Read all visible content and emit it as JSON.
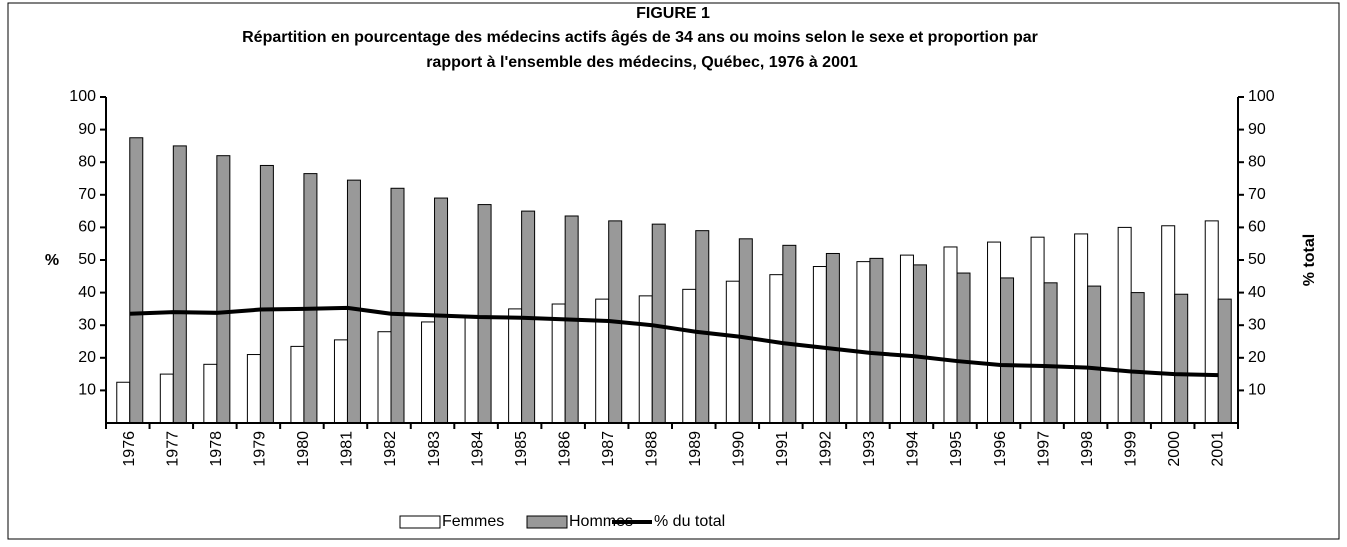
{
  "chart_data": {
    "type": "bar_line",
    "title": "FIGURE 1",
    "subtitle": [
      "Répartition en pourcentage des médecins actifs âgés de 34 ans ou moins selon le sexe et  proportion par",
      "rapport à l'ensemble des médecins, Québec, 1976 à 2001"
    ],
    "ylabel": "%",
    "y2label": "% total",
    "categories": [
      "1976",
      "1977",
      "1978",
      "1979",
      "1980",
      "1981",
      "1982",
      "1983",
      "1984",
      "1985",
      "1986",
      "1987",
      "1988",
      "1989",
      "1990",
      "1991",
      "1992",
      "1993",
      "1994",
      "1995",
      "1996",
      "1997",
      "1998",
      "1999",
      "2000",
      "2001"
    ],
    "series": [
      {
        "name": "Femmes",
        "kind": "bar",
        "color": "#ffffff",
        "values": [
          12.5,
          15,
          18,
          21,
          23.5,
          25.5,
          28,
          31,
          33,
          35,
          36.5,
          38,
          39,
          41,
          43.5,
          45.5,
          48,
          49.5,
          51.5,
          54,
          55.5,
          57,
          58,
          60,
          60.5,
          62
        ]
      },
      {
        "name": "Hommes",
        "kind": "bar",
        "color": "#999999",
        "values": [
          87.5,
          85,
          82,
          79,
          76.5,
          74.5,
          72,
          69,
          67,
          65,
          63.5,
          62,
          61,
          59,
          56.5,
          54.5,
          52,
          50.5,
          48.5,
          46,
          44.5,
          43,
          42,
          40,
          39.5,
          38
        ]
      },
      {
        "name": "% du total",
        "kind": "line",
        "axis": "y2",
        "color": "#000000",
        "values": [
          33.5,
          34,
          33.8,
          34.8,
          35,
          35.3,
          33.5,
          33,
          32.5,
          32.3,
          31.8,
          31.3,
          30,
          28,
          26.5,
          24.5,
          23,
          21.5,
          20.5,
          19,
          17.8,
          17.5,
          17,
          15.8,
          15,
          14.7
        ]
      }
    ],
    "ylim": [
      0,
      100
    ],
    "yticks": [
      10,
      20,
      30,
      40,
      50,
      60,
      70,
      80,
      90,
      100
    ],
    "y2lim": [
      0,
      100
    ],
    "y2ticks": [
      10,
      20,
      30,
      40,
      50,
      60,
      70,
      80,
      90,
      100
    ],
    "legend": "bottom"
  }
}
